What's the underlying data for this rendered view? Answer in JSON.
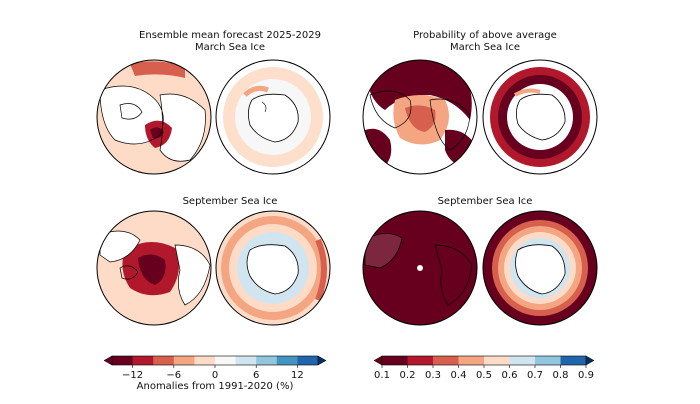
{
  "panels": {
    "left_title_line1": "Ensemble mean forecast 2025-2029",
    "left_title_line2": "March Sea Ice",
    "right_title_line1": "Probability of above average",
    "right_title_line2": "March Sea Ice",
    "left_sep_title": "September Sea Ice",
    "right_sep_title": "September Sea Ice"
  },
  "colors": {
    "dark_red": "#67001f",
    "red": "#b2182b",
    "mid_red": "#d6604d",
    "salmon": "#f4a582",
    "peach": "#fddbc7",
    "pale": "#f7f7f7",
    "light_blue": "#d1e5f0",
    "blue": "#92c5de",
    "mid_blue": "#4393c3",
    "dark_blue": "#2166ac",
    "navy": "#053061",
    "land_edge": "#000000",
    "ocean_white": "#ffffff"
  },
  "chart_data": [
    {
      "type": "heatmap",
      "title": "Ensemble mean forecast 2025-2029 March Sea Ice",
      "maps": [
        "Arctic",
        "Antarctic"
      ],
      "colorbar": "anomalies"
    },
    {
      "type": "heatmap",
      "title": "Probability of above average March Sea Ice",
      "maps": [
        "Arctic",
        "Antarctic"
      ],
      "colorbar": "probability"
    },
    {
      "type": "heatmap",
      "title": "September Sea Ice",
      "maps": [
        "Arctic",
        "Antarctic"
      ],
      "colorbar": "anomalies"
    },
    {
      "type": "heatmap",
      "title": "September Sea Ice",
      "maps": [
        "Arctic",
        "Antarctic"
      ],
      "colorbar": "probability"
    }
  ],
  "colorbars": {
    "anomalies": {
      "label": "Anomalies from 1991-2020 (%)",
      "ticks": [
        "−12",
        "−6",
        "0",
        "6",
        "12"
      ],
      "range": [
        -15,
        15
      ],
      "n_bins": 10
    },
    "probability": {
      "label": "",
      "ticks": [
        "0.1",
        "0.2",
        "0.3",
        "0.4",
        "0.5",
        "0.6",
        "0.7",
        "0.8",
        "0.9"
      ],
      "range": [
        0.1,
        0.9
      ],
      "n_bins": 8
    }
  }
}
